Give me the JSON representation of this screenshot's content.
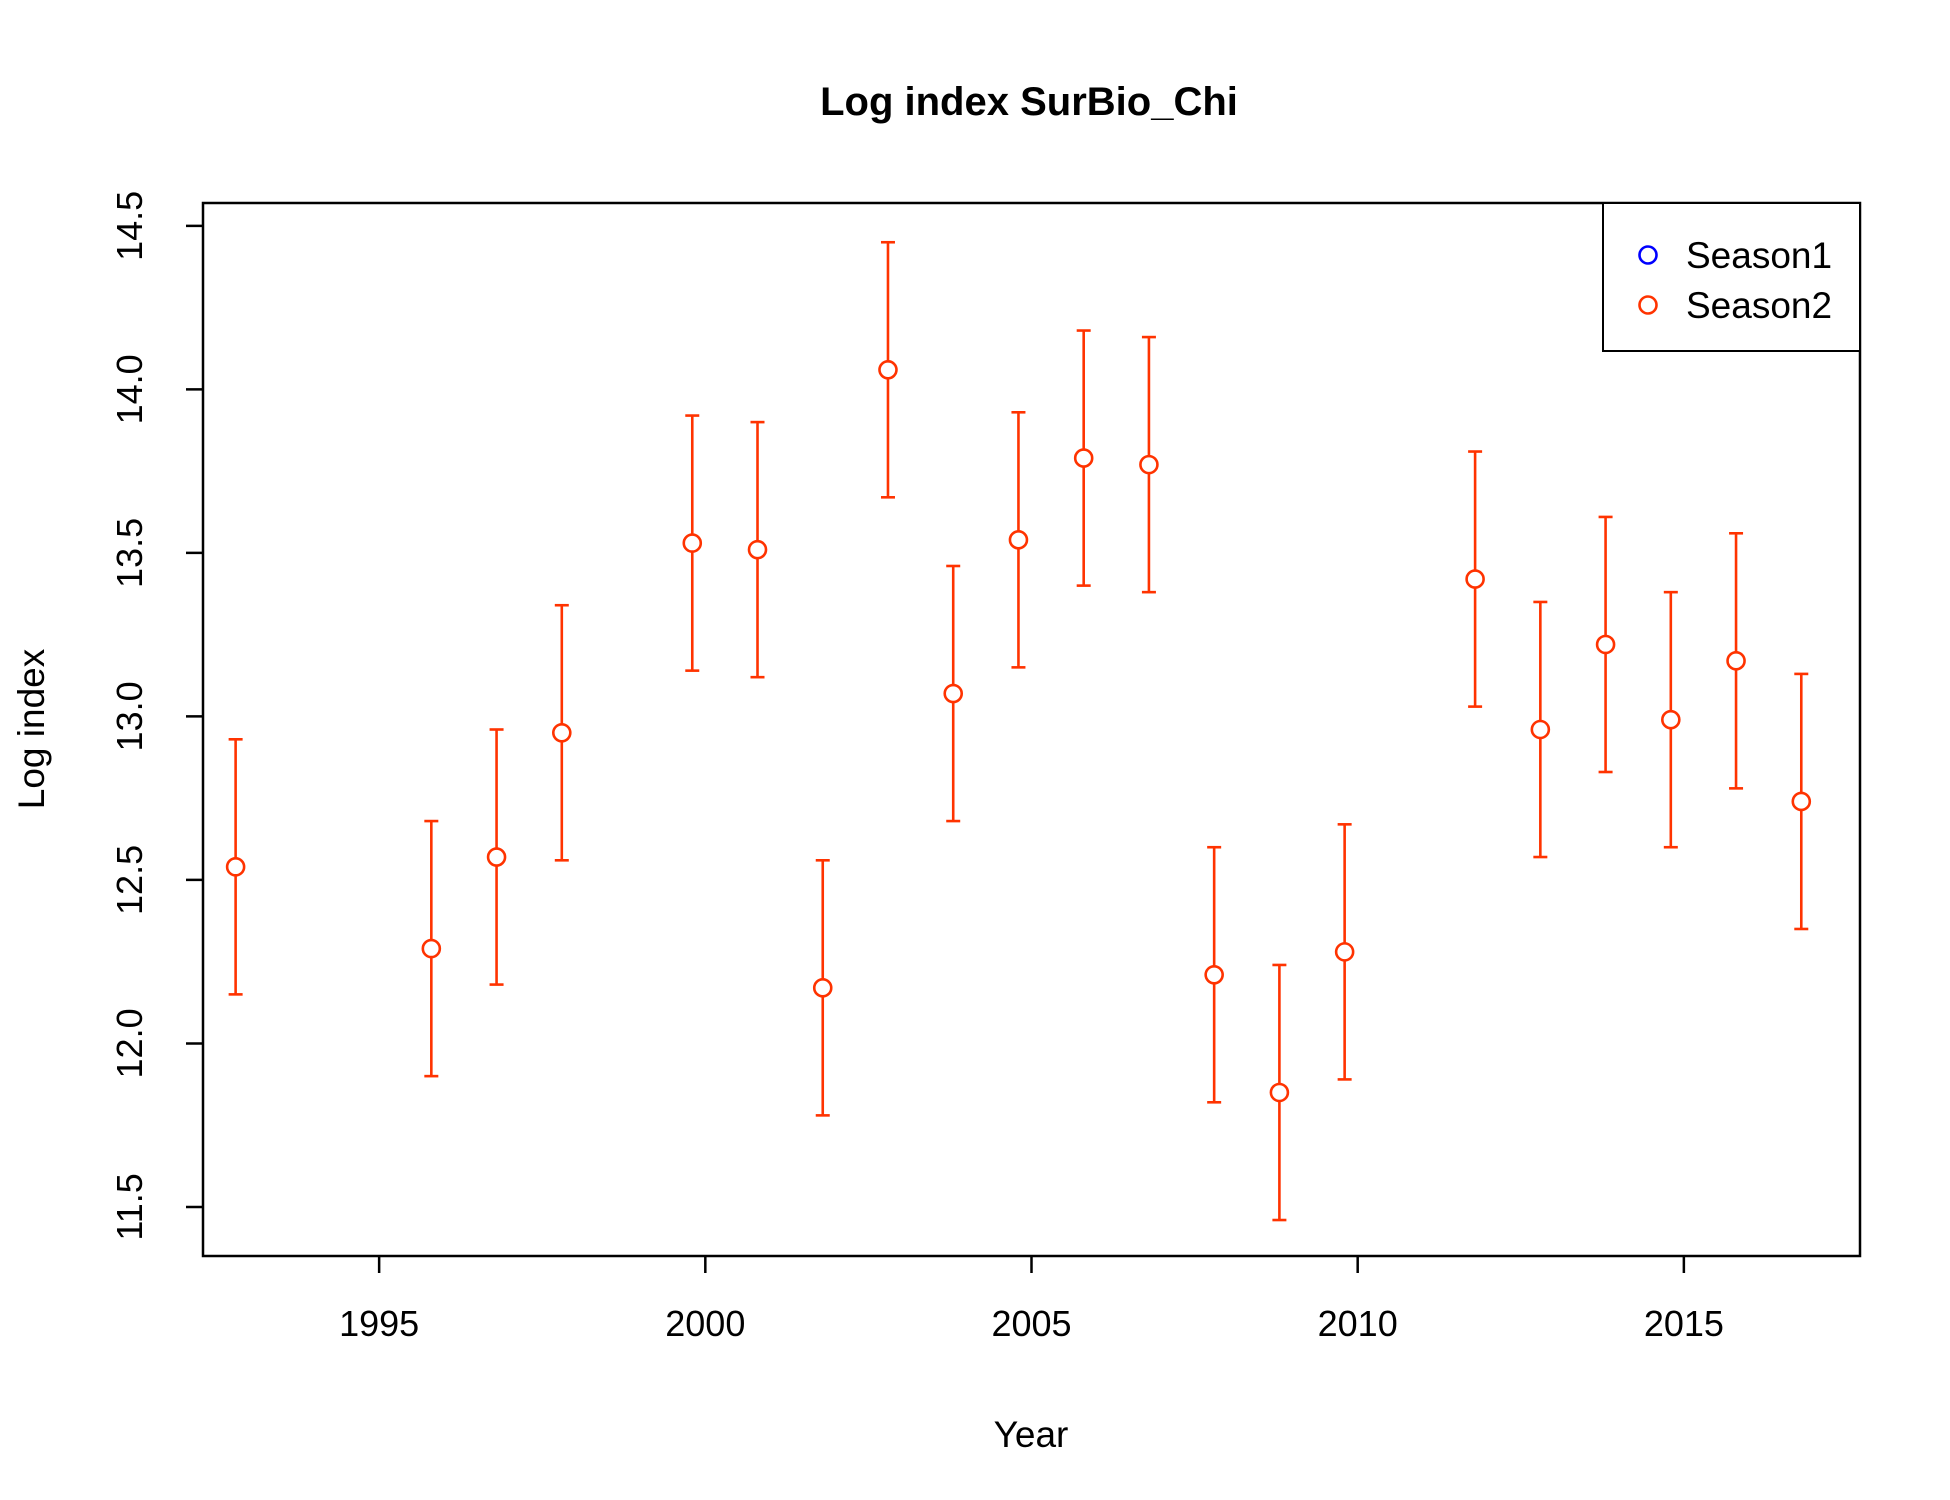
{
  "chart_data": {
    "type": "scatter",
    "title": "Log index SurBio_Chi",
    "xlabel": "Year",
    "ylabel": "Log index",
    "xlim": [
      1992.3,
      2017.7
    ],
    "ylim": [
      11.35,
      14.57
    ],
    "x_ticks": [
      1995,
      2000,
      2005,
      2010,
      2015
    ],
    "y_ticks": [
      11.5,
      12.0,
      12.5,
      13.0,
      13.5,
      14.0,
      14.5
    ],
    "x_tick_labels": [
      "1995",
      "2000",
      "2005",
      "2010",
      "2015"
    ],
    "y_tick_labels": [
      "11.5",
      "12.0",
      "12.5",
      "13.0",
      "13.5",
      "14.0",
      "14.5"
    ],
    "grid": false,
    "legend_position": "top-right",
    "series": [
      {
        "name": "Season1",
        "color": "#0000ff",
        "x": [],
        "y": [],
        "lower": [],
        "upper": []
      },
      {
        "name": "Season2",
        "color": "#ff3300",
        "x": [
          1992.8,
          1995.8,
          1996.8,
          1997.8,
          1999.8,
          2000.8,
          2001.8,
          2002.8,
          2003.8,
          2004.8,
          2005.8,
          2006.8,
          2007.8,
          2008.8,
          2009.8,
          2011.8,
          2012.8,
          2013.8,
          2014.8,
          2015.8,
          2016.8
        ],
        "y": [
          12.54,
          12.29,
          12.57,
          12.95,
          13.53,
          13.51,
          12.17,
          14.06,
          13.07,
          13.54,
          13.79,
          13.77,
          12.21,
          11.85,
          12.28,
          13.42,
          12.96,
          13.22,
          12.99,
          13.17,
          12.74
        ],
        "lower": [
          12.15,
          11.9,
          12.18,
          12.56,
          13.14,
          13.12,
          11.78,
          13.67,
          12.68,
          13.15,
          13.4,
          13.38,
          11.82,
          11.46,
          11.89,
          13.03,
          12.57,
          12.83,
          12.6,
          12.78,
          12.35
        ],
        "upper": [
          12.93,
          12.68,
          12.96,
          13.34,
          13.92,
          13.9,
          12.56,
          14.45,
          13.46,
          13.93,
          14.18,
          14.16,
          12.6,
          12.24,
          12.67,
          13.81,
          13.35,
          13.61,
          13.38,
          13.56,
          13.13
        ]
      }
    ]
  }
}
